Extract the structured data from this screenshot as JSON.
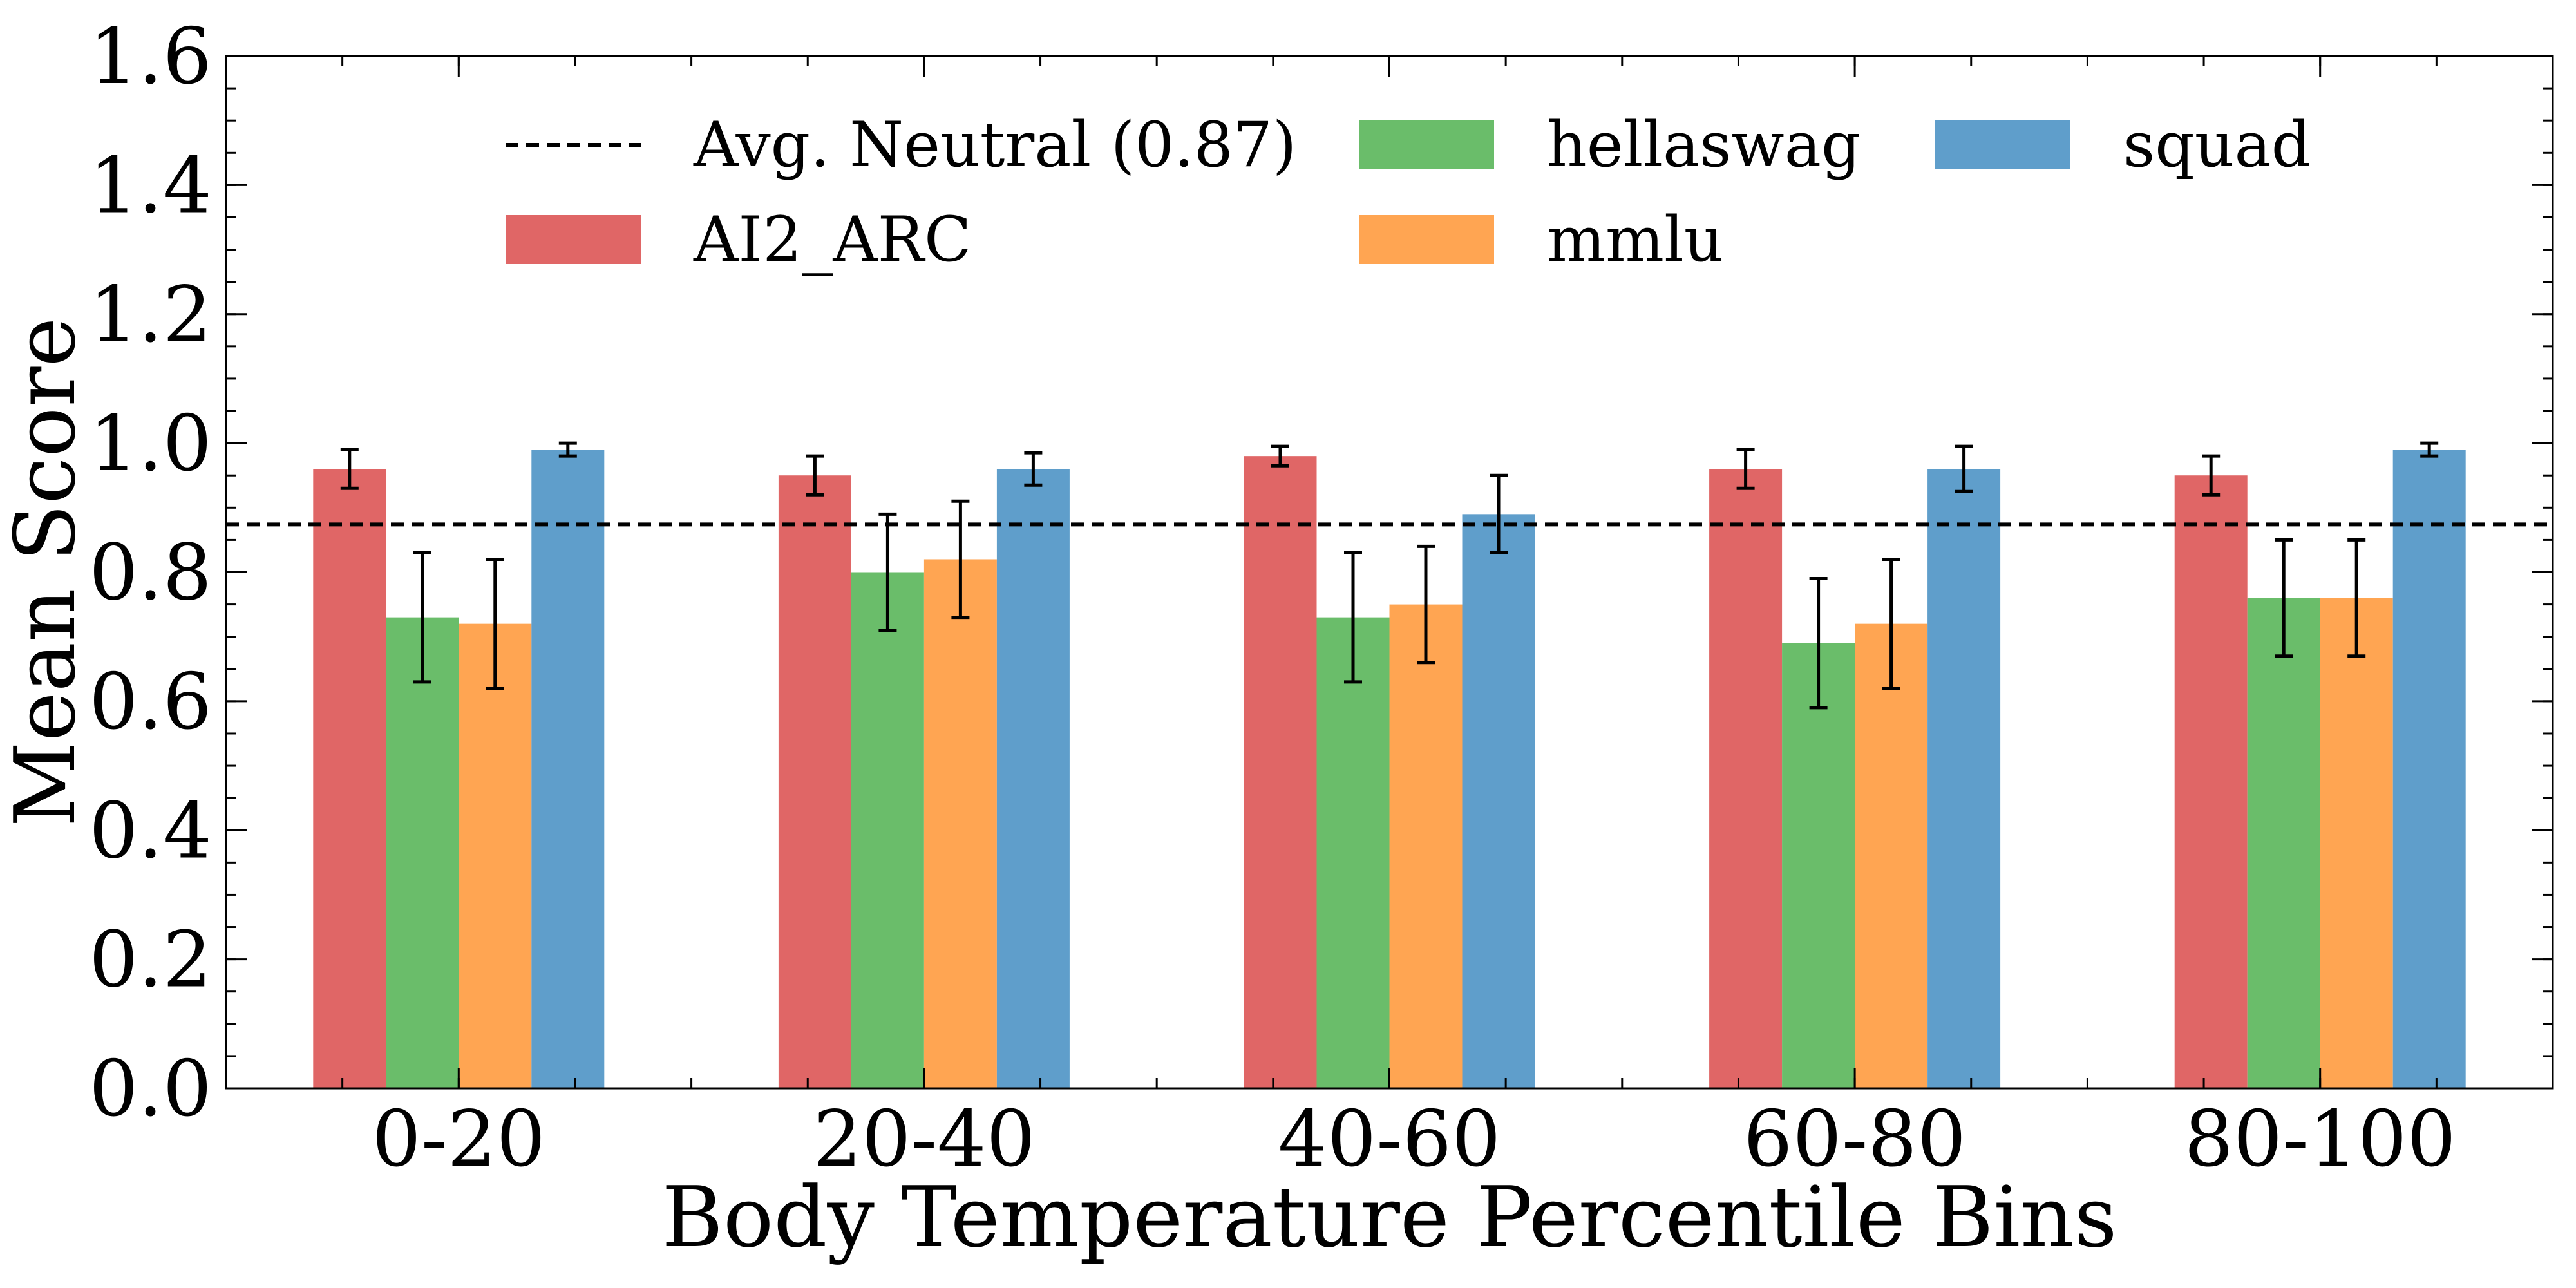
{
  "chart_data": {
    "type": "bar",
    "xlabel": "Body Temperature Percentile Bins",
    "ylabel": "Mean Score",
    "ylim": [
      0,
      1.6
    ],
    "yticks": [
      "0.0",
      "0.2",
      "0.4",
      "0.6",
      "0.8",
      "1.0",
      "1.2",
      "1.4",
      "1.6"
    ],
    "categories": [
      "0-20",
      "20-40",
      "40-60",
      "60-80",
      "80-100"
    ],
    "series": [
      {
        "name": "AI2_ARC",
        "color": "#e06666",
        "values": [
          0.96,
          0.95,
          0.98,
          0.96,
          0.95
        ],
        "errors": [
          0.03,
          0.03,
          0.015,
          0.03,
          0.03
        ]
      },
      {
        "name": "hellaswag",
        "color": "#6abd6a",
        "values": [
          0.73,
          0.8,
          0.73,
          0.69,
          0.76
        ],
        "errors": [
          0.1,
          0.09,
          0.1,
          0.1,
          0.09
        ]
      },
      {
        "name": "mmlu",
        "color": "#ffa552",
        "values": [
          0.72,
          0.82,
          0.75,
          0.72,
          0.76
        ],
        "errors": [
          0.1,
          0.09,
          0.09,
          0.1,
          0.09
        ]
      },
      {
        "name": "squad",
        "color": "#5f9ecb",
        "values": [
          0.99,
          0.96,
          0.89,
          0.96,
          0.99
        ],
        "errors": [
          0.01,
          0.025,
          0.06,
          0.035,
          0.01
        ]
      }
    ],
    "reference_line": {
      "label": "Avg. Neutral (0.87)",
      "value": 0.874,
      "style": "dashed",
      "color": "#000000"
    },
    "legend": {
      "placement": "top",
      "columns": 3
    },
    "grid": false
  }
}
